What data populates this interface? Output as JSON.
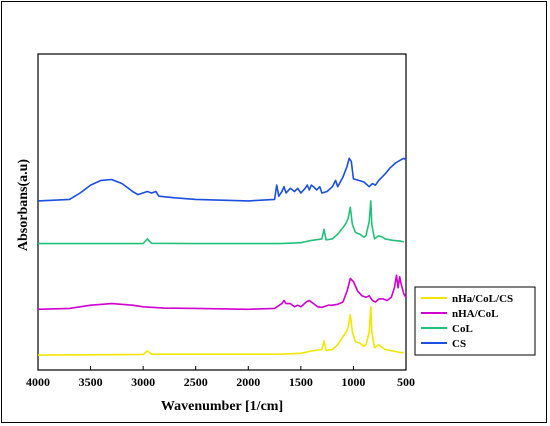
{
  "chart_data": {
    "type": "line",
    "title": "",
    "xlabel": "Wavenumber [1/cm]",
    "ylabel": "Absorbans(a.u)",
    "xlim": [
      4000,
      500
    ],
    "x_reversed": true,
    "ylim": [
      0,
      100
    ],
    "xticks": [
      4000,
      3500,
      3000,
      2500,
      2000,
      1500,
      1000,
      500
    ],
    "yticks_shown": false,
    "grid": false,
    "legend_position": "bottom-right outside",
    "series": [
      {
        "name": "nHa/CoL/CS",
        "color": "#f2e600",
        "points": [
          [
            4000,
            4.7
          ],
          [
            3500,
            4.8
          ],
          [
            3000,
            4.9
          ],
          [
            2960,
            6.0
          ],
          [
            2920,
            5.0
          ],
          [
            2500,
            5.0
          ],
          [
            2000,
            5.0
          ],
          [
            1700,
            5.0
          ],
          [
            1500,
            5.3
          ],
          [
            1400,
            6.0
          ],
          [
            1300,
            6.5
          ],
          [
            1280,
            9.2
          ],
          [
            1260,
            6.2
          ],
          [
            1200,
            6.5
          ],
          [
            1150,
            8.0
          ],
          [
            1100,
            10.5
          ],
          [
            1070,
            12.0
          ],
          [
            1050,
            13.5
          ],
          [
            1030,
            17.5
          ],
          [
            1010,
            12.0
          ],
          [
            980,
            9.0
          ],
          [
            940,
            8.5
          ],
          [
            900,
            7.5
          ],
          [
            880,
            8.0
          ],
          [
            850,
            12.0
          ],
          [
            835,
            20.0
          ],
          [
            825,
            12.0
          ],
          [
            800,
            7.0
          ],
          [
            760,
            8.0
          ],
          [
            720,
            7.0
          ],
          [
            700,
            6.5
          ],
          [
            620,
            6.0
          ],
          [
            550,
            5.5
          ],
          [
            520,
            5.5
          ]
        ]
      },
      {
        "name": "nHA/CoL",
        "color": "#d000d0",
        "points": [
          [
            4000,
            19.2
          ],
          [
            3700,
            19.5
          ],
          [
            3500,
            20.5
          ],
          [
            3300,
            21.0
          ],
          [
            3100,
            20.5
          ],
          [
            3000,
            20.0
          ],
          [
            2800,
            19.6
          ],
          [
            2500,
            19.5
          ],
          [
            2000,
            19.2
          ],
          [
            1750,
            19.5
          ],
          [
            1680,
            21.0
          ],
          [
            1660,
            22.0
          ],
          [
            1640,
            21.0
          ],
          [
            1600,
            21.0
          ],
          [
            1560,
            20.0
          ],
          [
            1530,
            20.5
          ],
          [
            1500,
            20.0
          ],
          [
            1450,
            21.5
          ],
          [
            1420,
            22.0
          ],
          [
            1380,
            21.0
          ],
          [
            1340,
            20.0
          ],
          [
            1300,
            19.8
          ],
          [
            1240,
            20.5
          ],
          [
            1200,
            20.5
          ],
          [
            1150,
            20.8
          ],
          [
            1100,
            21.5
          ],
          [
            1060,
            25.0
          ],
          [
            1030,
            29.0
          ],
          [
            1000,
            28.0
          ],
          [
            960,
            25.0
          ],
          [
            920,
            23.5
          ],
          [
            880,
            23.0
          ],
          [
            850,
            23.5
          ],
          [
            820,
            22.0
          ],
          [
            790,
            21.5
          ],
          [
            760,
            22.5
          ],
          [
            720,
            22.5
          ],
          [
            680,
            22.0
          ],
          [
            640,
            23.0
          ],
          [
            610,
            26.0
          ],
          [
            590,
            30.0
          ],
          [
            575,
            26.0
          ],
          [
            560,
            29.5
          ],
          [
            545,
            27.0
          ],
          [
            520,
            24.0
          ],
          [
            500,
            23.0
          ]
        ]
      },
      {
        "name": "CoL",
        "color": "#22c17a",
        "points": [
          [
            4000,
            40.0
          ],
          [
            3500,
            40.0
          ],
          [
            3000,
            40.0
          ],
          [
            2960,
            41.5
          ],
          [
            2920,
            40.1
          ],
          [
            2500,
            40.0
          ],
          [
            2000,
            40.0
          ],
          [
            1700,
            40.0
          ],
          [
            1500,
            40.3
          ],
          [
            1400,
            41.0
          ],
          [
            1300,
            41.5
          ],
          [
            1280,
            44.5
          ],
          [
            1260,
            41.2
          ],
          [
            1200,
            41.5
          ],
          [
            1150,
            43.0
          ],
          [
            1100,
            45.0
          ],
          [
            1070,
            46.5
          ],
          [
            1050,
            48.0
          ],
          [
            1030,
            51.5
          ],
          [
            1010,
            46.0
          ],
          [
            980,
            43.5
          ],
          [
            940,
            43.0
          ],
          [
            900,
            42.0
          ],
          [
            880,
            42.5
          ],
          [
            850,
            47.0
          ],
          [
            835,
            53.5
          ],
          [
            825,
            46.0
          ],
          [
            800,
            41.5
          ],
          [
            760,
            42.5
          ],
          [
            720,
            42.0
          ],
          [
            700,
            41.5
          ],
          [
            620,
            41.0
          ],
          [
            550,
            40.8
          ],
          [
            520,
            40.5
          ]
        ]
      },
      {
        "name": "CS",
        "color": "#1a4fe0",
        "points": [
          [
            4000,
            53.5
          ],
          [
            3700,
            54.0
          ],
          [
            3600,
            56.0
          ],
          [
            3500,
            58.5
          ],
          [
            3400,
            60.0
          ],
          [
            3300,
            60.3
          ],
          [
            3200,
            59.0
          ],
          [
            3100,
            56.5
          ],
          [
            3050,
            55.5
          ],
          [
            2960,
            56.5
          ],
          [
            2920,
            56.0
          ],
          [
            2880,
            56.5
          ],
          [
            2850,
            55.0
          ],
          [
            2700,
            54.5
          ],
          [
            2500,
            54.0
          ],
          [
            2000,
            53.5
          ],
          [
            1750,
            54.0
          ],
          [
            1730,
            58.5
          ],
          [
            1710,
            55.0
          ],
          [
            1680,
            56.5
          ],
          [
            1660,
            58.0
          ],
          [
            1640,
            56.0
          ],
          [
            1600,
            57.5
          ],
          [
            1560,
            56.5
          ],
          [
            1530,
            57.5
          ],
          [
            1500,
            56.0
          ],
          [
            1460,
            57.5
          ],
          [
            1440,
            58.5
          ],
          [
            1420,
            57.0
          ],
          [
            1400,
            58.5
          ],
          [
            1380,
            58.0
          ],
          [
            1350,
            57.0
          ],
          [
            1320,
            58.0
          ],
          [
            1300,
            56.0
          ],
          [
            1250,
            56.5
          ],
          [
            1200,
            58.0
          ],
          [
            1170,
            60.0
          ],
          [
            1150,
            58.0
          ],
          [
            1100,
            61.0
          ],
          [
            1060,
            64.5
          ],
          [
            1040,
            67.0
          ],
          [
            1020,
            66.0
          ],
          [
            1000,
            60.5
          ],
          [
            950,
            60.0
          ],
          [
            900,
            59.5
          ],
          [
            850,
            58.0
          ],
          [
            820,
            59.0
          ],
          [
            790,
            58.5
          ],
          [
            760,
            60.0
          ],
          [
            700,
            62.0
          ],
          [
            650,
            64.0
          ],
          [
            600,
            65.5
          ],
          [
            550,
            66.5
          ],
          [
            520,
            67.0
          ],
          [
            500,
            66.5
          ]
        ]
      }
    ],
    "legend_order": [
      "nHa/CoL/CS",
      "nHA/CoL",
      "CoL",
      "CS"
    ]
  }
}
